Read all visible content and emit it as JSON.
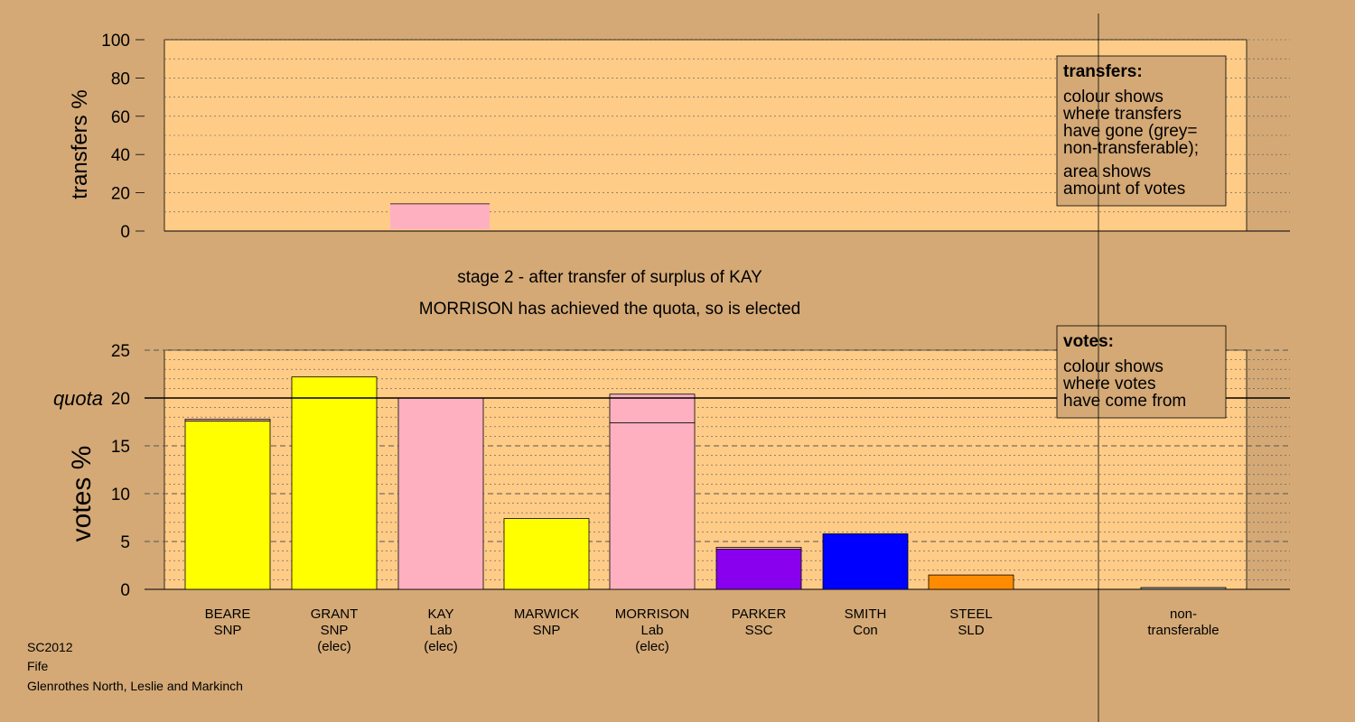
{
  "colors": {
    "background": "#D4A976",
    "panel": "#FFCC88",
    "legend_box": "#D4A976",
    "SNP": "#FFFF00",
    "Lab": "#FFB0C0",
    "SSC": "#8800EE",
    "Con": "#0000FF",
    "SLD": "#FF8C00",
    "nontransferable": "#A0A0A0"
  },
  "top_panel": {
    "ylabel": "transfers %",
    "ticks": [
      "0",
      "20",
      "40",
      "60",
      "80",
      "100"
    ],
    "legend": {
      "title": "transfers:",
      "lines": [
        "colour shows",
        "where transfers",
        "have gone (grey=",
        "non-transferable);",
        "area shows",
        "amount of votes"
      ]
    }
  },
  "stage_text": "stage 2 - after transfer of surplus of KAY",
  "status_text": "MORRISON has achieved the quota, so is elected",
  "bottom_panel": {
    "ylabel": "votes %",
    "quota_label": "quota",
    "ticks": [
      "0",
      "5",
      "10",
      "15",
      "20",
      "25"
    ],
    "legend": {
      "title": "votes:",
      "lines": [
        "colour shows",
        "where votes",
        "have come from"
      ]
    }
  },
  "candidates": [
    {
      "name": "BEARE",
      "party": "SNP",
      "note": ""
    },
    {
      "name": "GRANT",
      "party": "SNP",
      "note": "(elec)"
    },
    {
      "name": "KAY",
      "party": "Lab",
      "note": "(elec)"
    },
    {
      "name": "MARWICK",
      "party": "SNP",
      "note": ""
    },
    {
      "name": "MORRISON",
      "party": "Lab",
      "note": "(elec)"
    },
    {
      "name": "PARKER",
      "party": "SSC",
      "note": ""
    },
    {
      "name": "SMITH",
      "party": "Con",
      "note": ""
    },
    {
      "name": "STEEL",
      "party": "SLD",
      "note": ""
    }
  ],
  "nontransferable_label": [
    "non-",
    "transferable"
  ],
  "footer": [
    "SC2012",
    "Fife",
    "Glenrothes North, Leslie and Markinch"
  ],
  "chart_data": [
    {
      "type": "bar",
      "title": "",
      "ylabel": "transfers %",
      "ylim": [
        0,
        100
      ],
      "grid": true,
      "categories": [
        "BEARE",
        "GRANT",
        "KAY",
        "MARWICK",
        "MORRISON",
        "PARKER",
        "SMITH",
        "STEEL",
        "non-transferable"
      ],
      "series": [
        {
          "name": "",
          "values": [
            0,
            0,
            14.2,
            0,
            0,
            0,
            0,
            0,
            0
          ],
          "transfer_to_party": "Lab"
        }
      ]
    },
    {
      "type": "bar",
      "title": "stage 2 - after transfer of surplus of KAY",
      "ylabel": "votes %",
      "ylim": [
        0,
        25
      ],
      "quota": 20,
      "grid": true,
      "categories": [
        "BEARE",
        "GRANT",
        "KAY",
        "MARWICK",
        "MORRISON",
        "PARKER",
        "SMITH",
        "STEEL",
        "non-transferable"
      ],
      "series": [
        {
          "name": "",
          "values": [
            17.6,
            22.2,
            20.0,
            7.4,
            17.4,
            4.2,
            5.8,
            1.5,
            0
          ],
          "parties": [
            "SNP",
            "SNP",
            "Lab",
            "SNP",
            "Lab",
            "SSC",
            "Con",
            "SLD",
            "none"
          ]
        },
        {
          "name": "",
          "values": [
            0.1,
            0,
            0,
            0,
            3.0,
            0.1,
            0,
            0,
            0.1
          ],
          "from_party": "Lab"
        }
      ]
    }
  ]
}
